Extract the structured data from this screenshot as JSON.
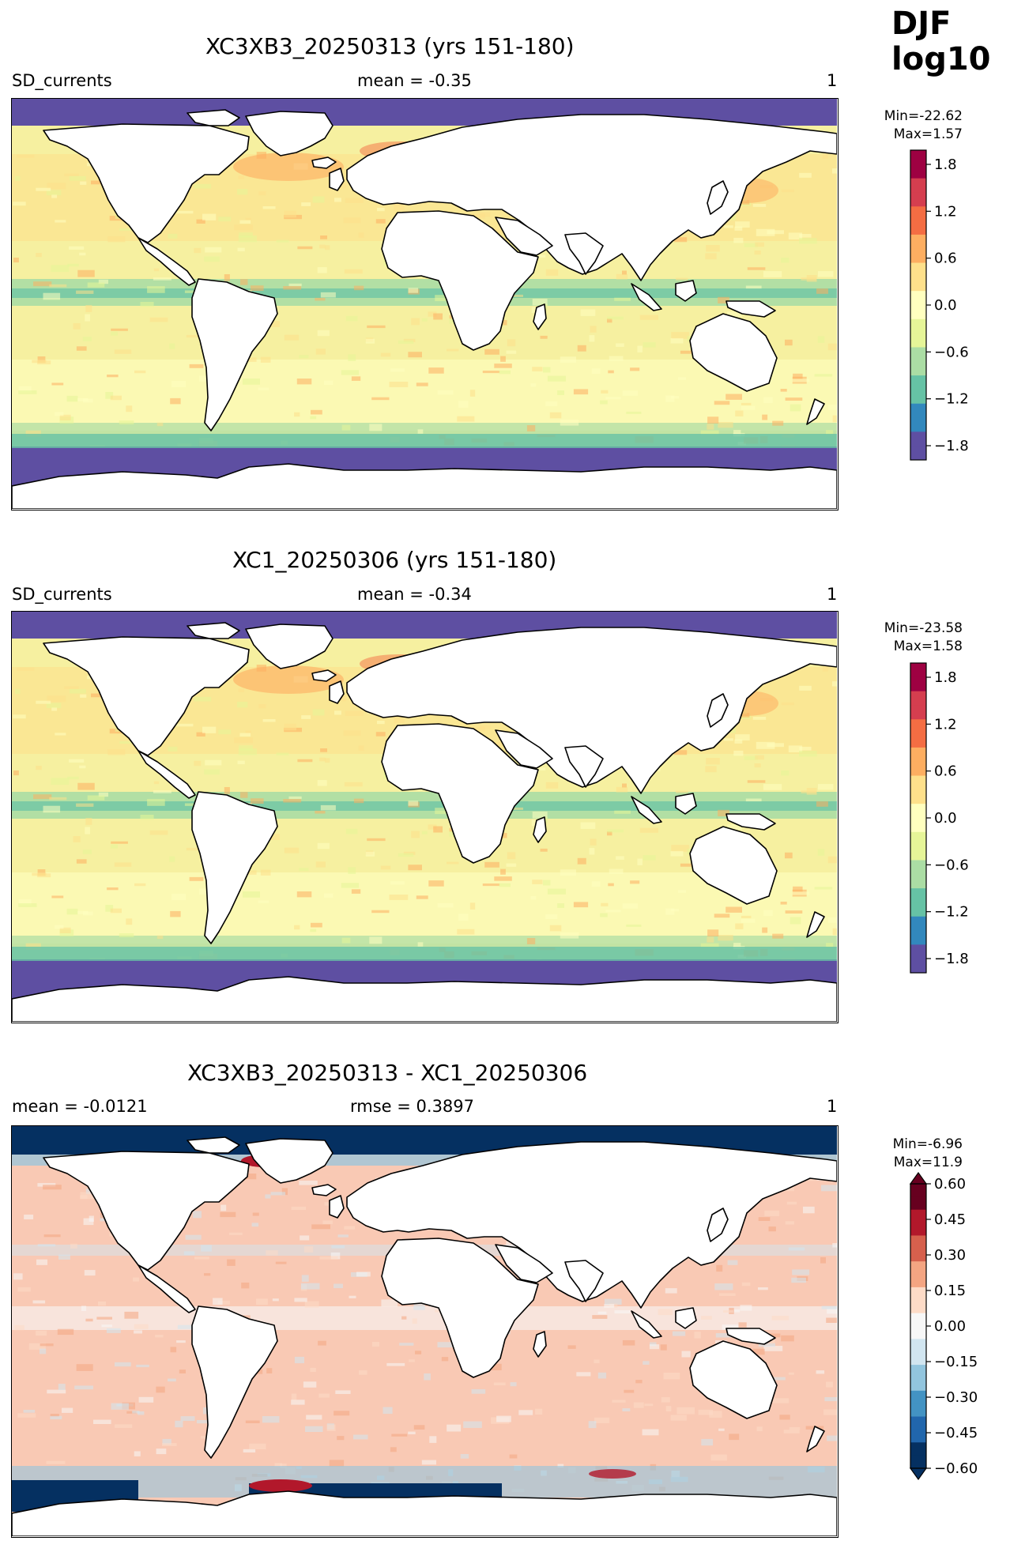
{
  "figure": {
    "season": "DJF",
    "transform": "log10"
  },
  "panels": [
    {
      "title": "XC3XB3_20250313 (yrs 151-180)",
      "left_label": "SD_currents",
      "center_label": "mean = -0.35",
      "right_label": "1",
      "min_label": "Min=-22.62",
      "max_label": "Max=1.57",
      "colormap": "Spectral_r",
      "colorbar_ticks": [
        "1.8",
        "1.2",
        "0.6",
        "0.0",
        "−0.6",
        "−1.2",
        "−1.8"
      ]
    },
    {
      "title": "XC1_20250306 (yrs 151-180)",
      "left_label": "SD_currents",
      "center_label": "mean = -0.34",
      "right_label": "1",
      "min_label": "Min=-23.58",
      "max_label": "Max=1.58",
      "colormap": "Spectral_r",
      "colorbar_ticks": [
        "1.8",
        "1.2",
        "0.6",
        "0.0",
        "−0.6",
        "−1.2",
        "−1.8"
      ]
    },
    {
      "title": "XC3XB3_20250313 - XC1_20250306",
      "left_label": "mean = -0.0121",
      "center_label": "rmse = 0.3897",
      "right_label": "1",
      "min_label": "Min=-6.96",
      "max_label": "Max=11.9",
      "colormap": "RdBu_r",
      "colorbar_ticks": [
        "0.60",
        "0.45",
        "0.30",
        "0.15",
        "0.00",
        "−0.15",
        "−0.30",
        "−0.45",
        "−0.60"
      ]
    }
  ],
  "colors": {
    "spectral": [
      "#5e4fa2",
      "#3288bd",
      "#66c2a5",
      "#abdda4",
      "#e6f598",
      "#ffffbf",
      "#fee08b",
      "#fdae61",
      "#f46d43",
      "#d53e4f",
      "#9e0142"
    ],
    "rdbu": [
      "#053061",
      "#2166ac",
      "#4393c3",
      "#92c5de",
      "#d1e5f0",
      "#f7f7f7",
      "#fddbc7",
      "#f4a582",
      "#d6604d",
      "#b2182b",
      "#67001f"
    ],
    "ocean_mean": "#f6f0a0",
    "ocean_diff": "#f9c9b4",
    "land": "#ffffff",
    "coast": "#000000"
  }
}
